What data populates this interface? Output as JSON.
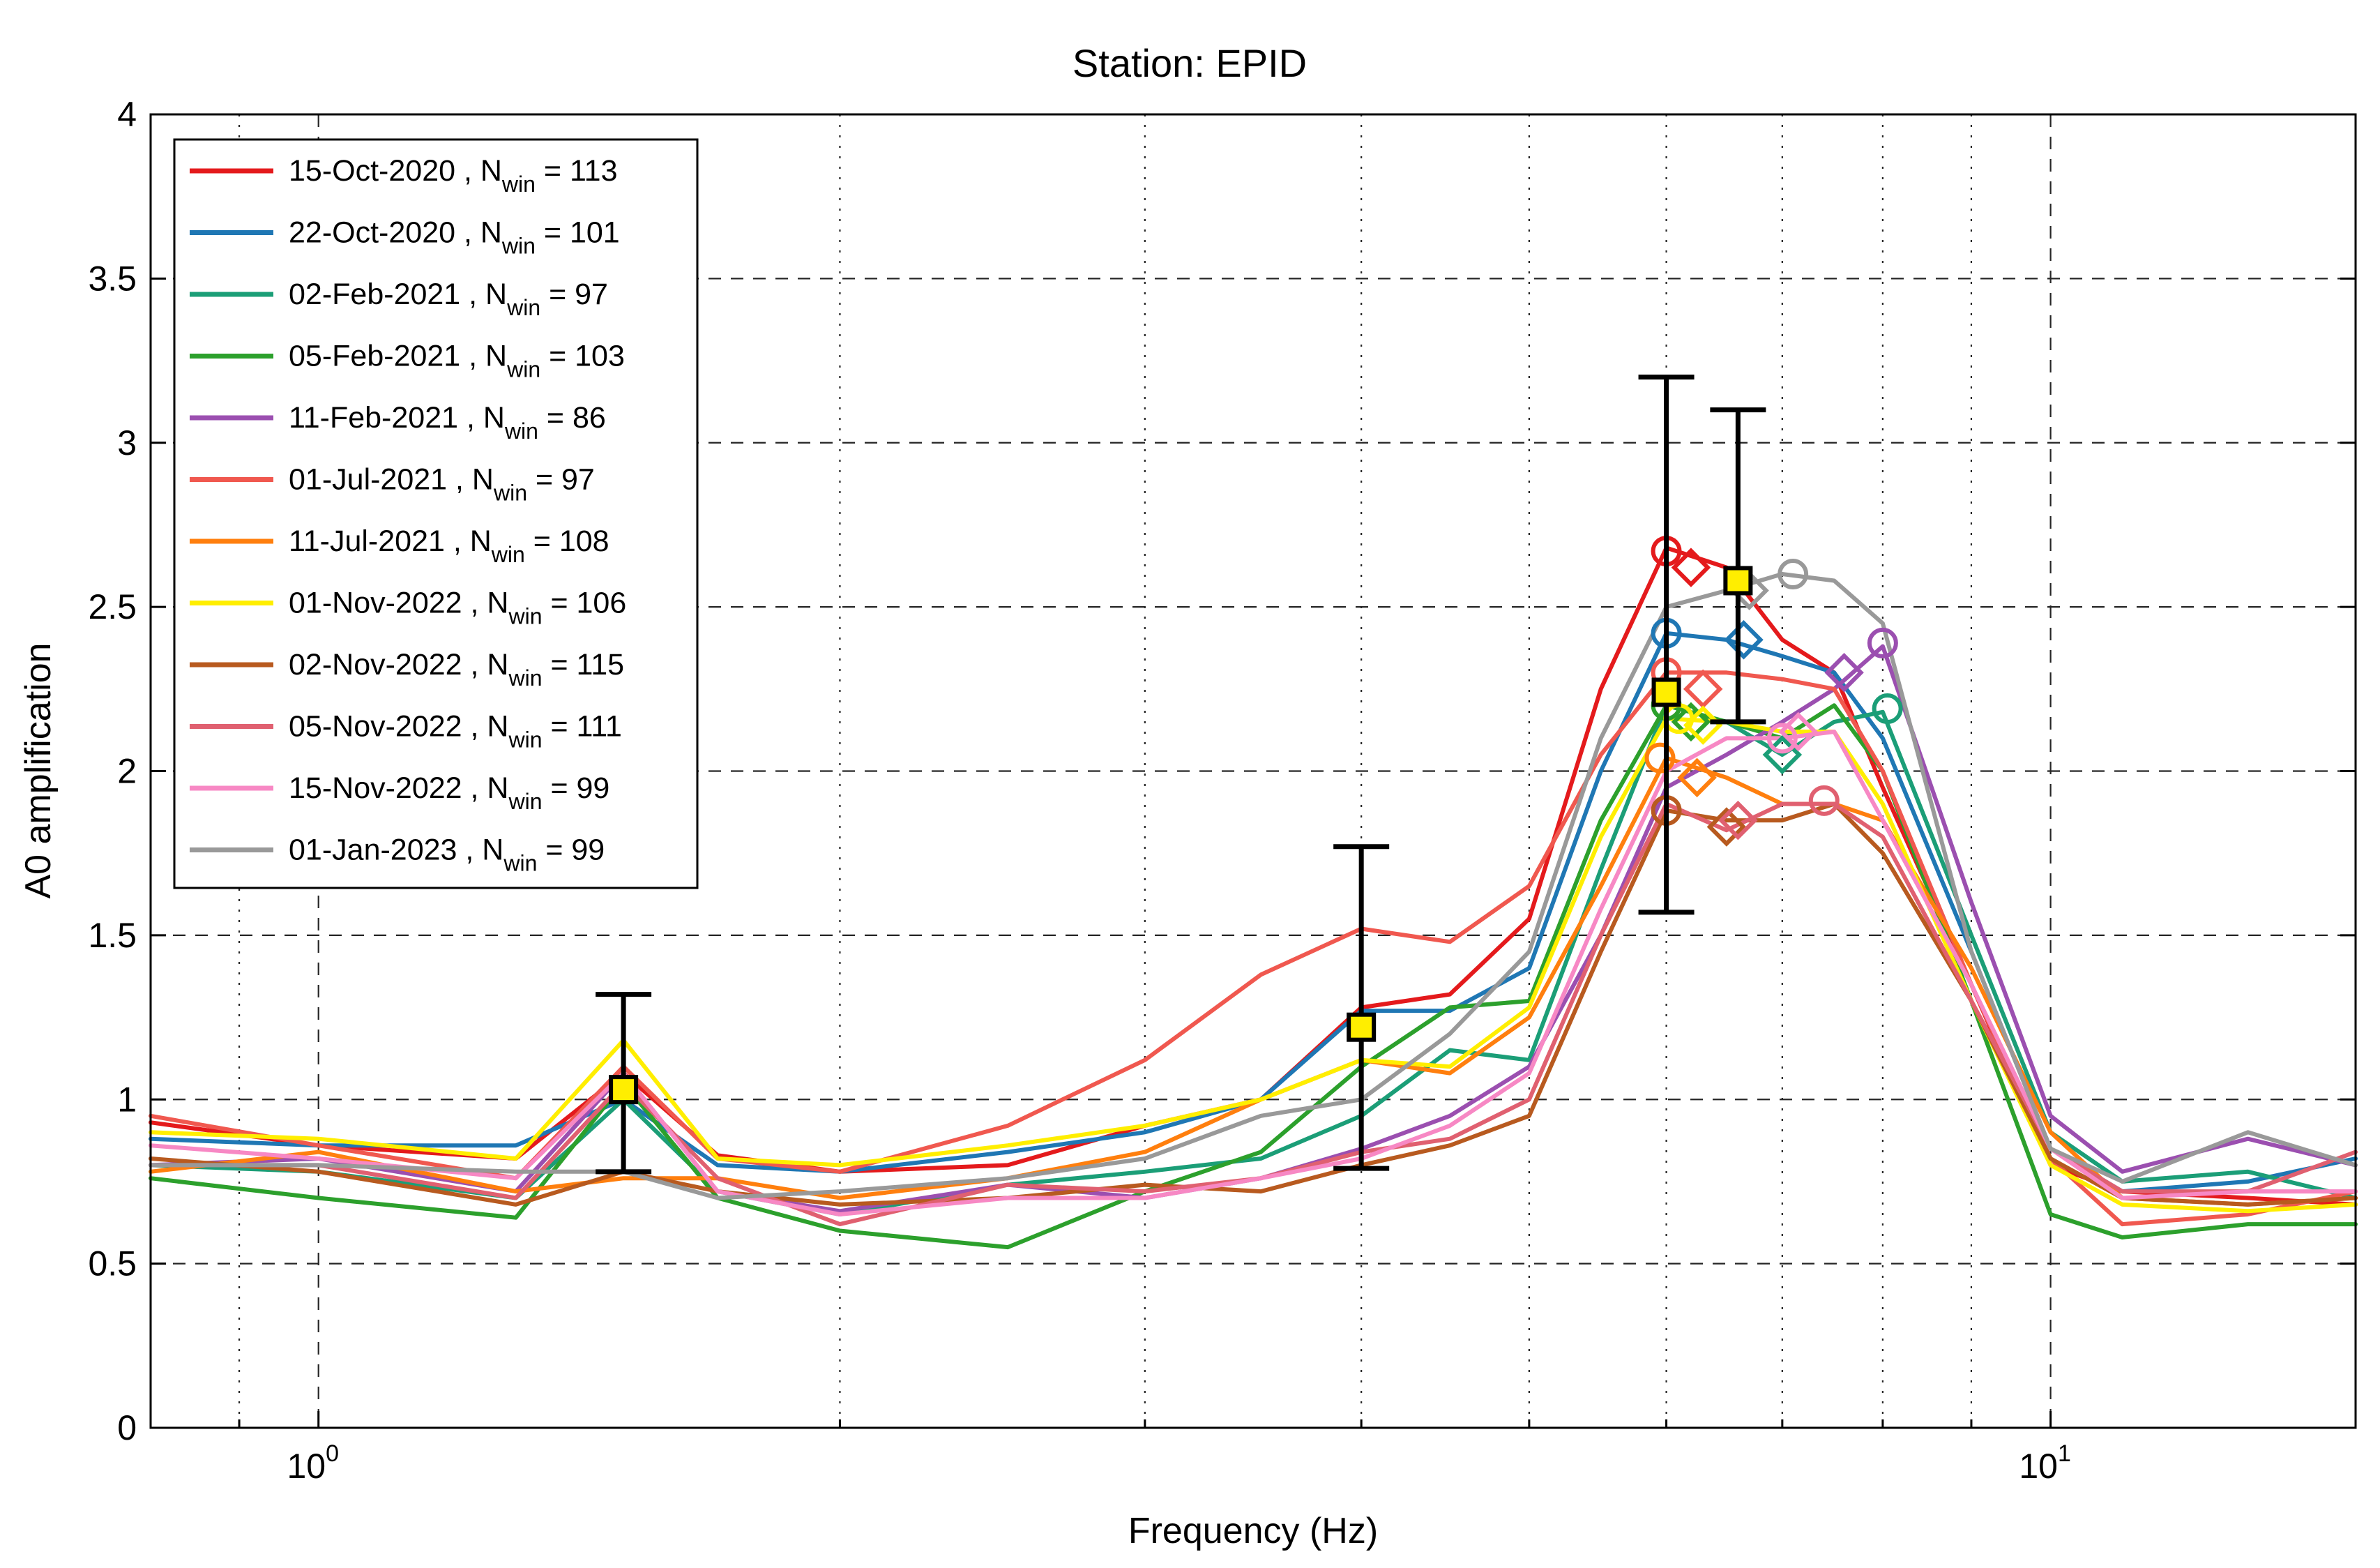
{
  "chart_data": {
    "type": "line",
    "title": "Station: EPID",
    "xlabel": "Frequency (Hz)",
    "ylabel": "A0 amplification",
    "xscale": "log",
    "xlim": [
      0.8,
      15
    ],
    "ylim": [
      0,
      4
    ],
    "grid": true,
    "legend_position": "top-left",
    "y_ticks": [
      {
        "value": 0,
        "label": "0"
      },
      {
        "value": 0.5,
        "label": "0.5"
      },
      {
        "value": 1,
        "label": "1"
      },
      {
        "value": 1.5,
        "label": "1.5"
      },
      {
        "value": 2,
        "label": "2"
      },
      {
        "value": 2.5,
        "label": "2.5"
      },
      {
        "value": 3,
        "label": "3"
      },
      {
        "value": 3.5,
        "label": "3.5"
      },
      {
        "value": 4,
        "label": "4"
      }
    ],
    "x_ticks": [
      {
        "value": 1,
        "base": "10",
        "exp": "0"
      },
      {
        "value": 10,
        "base": "10",
        "exp": "1"
      }
    ],
    "x_minor_ticks": [
      0.8,
      0.9,
      2,
      3,
      4,
      5,
      6,
      7,
      8,
      9
    ],
    "series": [
      {
        "name": "15-Oct-2020",
        "nwin": "113",
        "color": "#e41a1c",
        "x": [
          0.8,
          1.0,
          1.3,
          1.5,
          1.7,
          2.0,
          2.5,
          3.0,
          3.5,
          4.0,
          4.5,
          5.0,
          5.5,
          6.0,
          6.5,
          7.0,
          7.5,
          8.0,
          9.0,
          10.0,
          11.0,
          13.0,
          15.0
        ],
        "y": [
          0.93,
          0.86,
          0.82,
          1.08,
          0.83,
          0.78,
          0.8,
          0.92,
          1.0,
          1.28,
          1.32,
          1.55,
          2.25,
          2.68,
          2.62,
          2.4,
          2.3,
          1.95,
          1.35,
          0.8,
          0.72,
          0.7,
          0.68
        ]
      },
      {
        "name": "22-Oct-2020",
        "nwin": "101",
        "color": "#1f77b4",
        "x": [
          0.8,
          1.0,
          1.3,
          1.5,
          1.7,
          2.0,
          2.5,
          3.0,
          3.5,
          4.0,
          4.5,
          5.0,
          5.5,
          6.0,
          6.5,
          7.0,
          7.5,
          8.0,
          9.0,
          10.0,
          11.0,
          13.0,
          15.0
        ],
        "y": [
          0.88,
          0.86,
          0.86,
          1.0,
          0.8,
          0.78,
          0.84,
          0.9,
          1.0,
          1.27,
          1.27,
          1.4,
          2.0,
          2.42,
          2.4,
          2.35,
          2.3,
          2.1,
          1.45,
          0.85,
          0.72,
          0.75,
          0.82
        ]
      },
      {
        "name": "02-Feb-2021",
        "nwin": "97",
        "color": "#1b9e77",
        "x": [
          0.8,
          1.0,
          1.3,
          1.5,
          1.7,
          2.0,
          2.5,
          3.0,
          3.5,
          4.0,
          4.5,
          5.0,
          5.5,
          6.0,
          6.5,
          7.0,
          7.5,
          8.0,
          9.0,
          10.0,
          11.0,
          13.0,
          15.0
        ],
        "y": [
          0.8,
          0.78,
          0.7,
          1.0,
          0.72,
          0.65,
          0.74,
          0.78,
          0.82,
          0.95,
          1.15,
          1.12,
          1.7,
          2.2,
          2.15,
          2.05,
          2.15,
          2.18,
          1.5,
          0.9,
          0.75,
          0.78,
          0.7
        ]
      },
      {
        "name": "05-Feb-2021",
        "nwin": "103",
        "color": "#2ca02c",
        "x": [
          0.8,
          1.0,
          1.3,
          1.5,
          1.7,
          2.0,
          2.5,
          3.0,
          3.5,
          4.0,
          4.5,
          5.0,
          5.5,
          6.0,
          6.5,
          7.0,
          7.5,
          8.0,
          9.0,
          10.0,
          11.0,
          13.0,
          15.0
        ],
        "y": [
          0.76,
          0.7,
          0.64,
          1.05,
          0.7,
          0.6,
          0.55,
          0.72,
          0.84,
          1.1,
          1.28,
          1.3,
          1.85,
          2.2,
          2.15,
          2.1,
          2.2,
          2.0,
          1.3,
          0.65,
          0.58,
          0.62,
          0.62
        ]
      },
      {
        "name": "11-Feb-2021",
        "nwin": "86",
        "color": "#9b4fb0",
        "x": [
          0.8,
          1.0,
          1.3,
          1.5,
          1.7,
          2.0,
          2.5,
          3.0,
          3.5,
          4.0,
          4.5,
          5.0,
          5.5,
          6.0,
          6.5,
          7.0,
          7.5,
          8.0,
          9.0,
          10.0,
          11.0,
          13.0,
          15.0
        ],
        "y": [
          0.8,
          0.82,
          0.72,
          1.08,
          0.72,
          0.66,
          0.74,
          0.7,
          0.76,
          0.85,
          0.95,
          1.1,
          1.5,
          1.95,
          2.05,
          2.15,
          2.25,
          2.38,
          1.6,
          0.95,
          0.78,
          0.88,
          0.8
        ]
      },
      {
        "name": "01-Jul-2021",
        "nwin": "97",
        "color": "#f0584f",
        "x": [
          0.8,
          1.0,
          1.3,
          1.5,
          1.7,
          2.0,
          2.5,
          3.0,
          3.5,
          4.0,
          4.5,
          5.0,
          5.5,
          6.0,
          6.5,
          7.0,
          7.5,
          8.0,
          9.0,
          10.0,
          11.0,
          13.0,
          15.0
        ],
        "y": [
          0.95,
          0.86,
          0.76,
          1.1,
          0.82,
          0.78,
          0.92,
          1.12,
          1.38,
          1.52,
          1.48,
          1.65,
          2.05,
          2.3,
          2.3,
          2.28,
          2.25,
          2.0,
          1.35,
          0.82,
          0.62,
          0.65,
          0.72
        ]
      },
      {
        "name": "11-Jul-2021",
        "nwin": "108",
        "color": "#ff7f0e",
        "x": [
          0.8,
          1.0,
          1.3,
          1.5,
          1.7,
          2.0,
          2.5,
          3.0,
          3.5,
          4.0,
          4.5,
          5.0,
          5.5,
          6.0,
          6.5,
          7.0,
          7.5,
          8.0,
          9.0,
          10.0,
          11.0,
          13.0,
          15.0
        ],
        "y": [
          0.78,
          0.84,
          0.72,
          0.76,
          0.76,
          0.7,
          0.76,
          0.84,
          1.0,
          1.12,
          1.08,
          1.25,
          1.65,
          2.04,
          1.98,
          1.9,
          1.9,
          1.85,
          1.4,
          0.9,
          0.7,
          0.68,
          0.7
        ]
      },
      {
        "name": "01-Nov-2022",
        "nwin": "106",
        "color": "#ffee00",
        "x": [
          0.8,
          1.0,
          1.3,
          1.5,
          1.7,
          2.0,
          2.5,
          3.0,
          3.5,
          4.0,
          4.5,
          5.0,
          5.5,
          6.0,
          6.5,
          7.0,
          7.5,
          8.0,
          9.0,
          10.0,
          11.0,
          13.0,
          15.0
        ],
        "y": [
          0.9,
          0.88,
          0.82,
          1.18,
          0.82,
          0.8,
          0.86,
          0.92,
          1.0,
          1.12,
          1.1,
          1.28,
          1.8,
          2.16,
          2.15,
          2.12,
          2.12,
          1.9,
          1.3,
          0.8,
          0.68,
          0.66,
          0.68
        ]
      },
      {
        "name": "02-Nov-2022",
        "nwin": "115",
        "color": "#b85a1f",
        "x": [
          0.8,
          1.0,
          1.3,
          1.5,
          1.7,
          2.0,
          2.5,
          3.0,
          3.5,
          4.0,
          4.5,
          5.0,
          5.5,
          6.0,
          6.5,
          7.0,
          7.5,
          8.0,
          9.0,
          10.0,
          11.0,
          13.0,
          15.0
        ],
        "y": [
          0.82,
          0.78,
          0.68,
          0.78,
          0.72,
          0.68,
          0.7,
          0.74,
          0.72,
          0.8,
          0.86,
          0.95,
          1.45,
          1.88,
          1.85,
          1.85,
          1.9,
          1.75,
          1.3,
          0.82,
          0.7,
          0.68,
          0.7
        ]
      },
      {
        "name": "05-Nov-2022",
        "nwin": "111",
        "color": "#e06070",
        "x": [
          0.8,
          1.0,
          1.3,
          1.5,
          1.7,
          2.0,
          2.5,
          3.0,
          3.5,
          4.0,
          4.5,
          5.0,
          5.5,
          6.0,
          6.5,
          7.0,
          7.5,
          8.0,
          9.0,
          10.0,
          11.0,
          13.0,
          15.0
        ],
        "y": [
          0.8,
          0.8,
          0.7,
          1.05,
          0.76,
          0.62,
          0.74,
          0.72,
          0.76,
          0.84,
          0.88,
          1.0,
          1.5,
          1.9,
          1.82,
          1.9,
          1.9,
          1.8,
          1.3,
          0.85,
          0.72,
          0.72,
          0.84
        ]
      },
      {
        "name": "15-Nov-2022",
        "nwin": "99",
        "color": "#f788c4",
        "x": [
          0.8,
          1.0,
          1.3,
          1.5,
          1.7,
          2.0,
          2.5,
          3.0,
          3.5,
          4.0,
          4.5,
          5.0,
          5.5,
          6.0,
          6.5,
          7.0,
          7.5,
          8.0,
          9.0,
          10.0,
          11.0,
          13.0,
          15.0
        ],
        "y": [
          0.86,
          0.82,
          0.76,
          1.08,
          0.72,
          0.65,
          0.7,
          0.7,
          0.76,
          0.82,
          0.92,
          1.08,
          1.58,
          2.0,
          2.1,
          2.1,
          2.12,
          1.85,
          1.35,
          0.85,
          0.7,
          0.72,
          0.72
        ]
      },
      {
        "name": "01-Jan-2023",
        "nwin": "99",
        "color": "#999999",
        "x": [
          0.8,
          1.0,
          1.3,
          1.5,
          1.7,
          2.0,
          2.5,
          3.0,
          3.5,
          4.0,
          4.5,
          5.0,
          5.5,
          6.0,
          6.5,
          7.0,
          7.5,
          8.0,
          9.0,
          10.0,
          11.0,
          13.0,
          15.0
        ],
        "y": [
          0.8,
          0.8,
          0.78,
          0.78,
          0.7,
          0.72,
          0.76,
          0.82,
          0.95,
          1.0,
          1.2,
          1.45,
          2.1,
          2.5,
          2.55,
          2.6,
          2.58,
          2.45,
          1.45,
          0.85,
          0.75,
          0.9,
          0.8
        ]
      }
    ],
    "peak_markers": [
      {
        "series": "15-Oct-2020",
        "circle": [
          6.0,
          2.67
        ],
        "diamond": [
          6.2,
          2.62
        ]
      },
      {
        "series": "22-Oct-2020",
        "circle": [
          6.0,
          2.42
        ],
        "diamond": [
          6.65,
          2.4
        ]
      },
      {
        "series": "02-Feb-2021",
        "circle": [
          8.05,
          2.19
        ],
        "diamond": [
          7.0,
          2.05
        ]
      },
      {
        "series": "05-Feb-2021",
        "circle": [
          6.0,
          2.2
        ],
        "diamond": [
          6.2,
          2.15
        ]
      },
      {
        "series": "11-Feb-2021",
        "circle": [
          8.0,
          2.39
        ],
        "diamond": [
          7.6,
          2.3
        ]
      },
      {
        "series": "01-Jul-2021",
        "circle": [
          6.0,
          2.3
        ],
        "diamond": [
          6.3,
          2.25
        ]
      },
      {
        "series": "11-Jul-2021",
        "circle": [
          5.95,
          2.04
        ],
        "diamond": [
          6.25,
          1.98
        ]
      },
      {
        "series": "01-Nov-2022",
        "circle": [
          6.1,
          2.16
        ],
        "diamond": [
          6.3,
          2.14
        ]
      },
      {
        "series": "02-Nov-2022",
        "circle": [
          6.0,
          1.88
        ],
        "diamond": [
          6.5,
          1.83
        ]
      },
      {
        "series": "05-Nov-2022",
        "circle": [
          7.4,
          1.91
        ],
        "diamond": [
          6.6,
          1.85
        ]
      },
      {
        "series": "15-Nov-2022",
        "circle": [
          7.0,
          2.1
        ],
        "diamond": [
          7.15,
          2.12
        ]
      },
      {
        "series": "01-Jan-2023",
        "circle": [
          7.1,
          2.6
        ],
        "diamond": [
          6.7,
          2.55
        ]
      }
    ],
    "error_bars": [
      {
        "x": 1.5,
        "y": 1.03,
        "low": 0.78,
        "high": 1.32
      },
      {
        "x": 4.0,
        "y": 1.22,
        "low": 0.79,
        "high": 1.77
      },
      {
        "x": 6.0,
        "y": 2.24,
        "low": 1.57,
        "high": 3.2
      },
      {
        "x": 6.6,
        "y": 2.58,
        "low": 2.15,
        "high": 3.1
      }
    ]
  }
}
